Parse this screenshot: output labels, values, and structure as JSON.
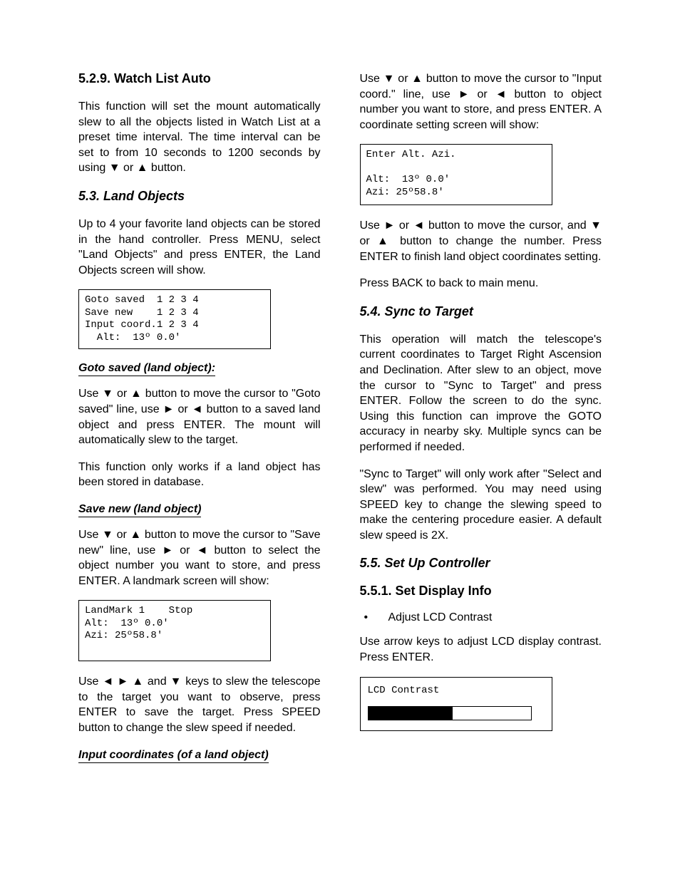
{
  "left": {
    "sec529": {
      "heading": "5.2.9. Watch List Auto",
      "para": "This function will set the mount automatically slew to all the objects listed in Watch List at a preset time interval. The time interval can be set to from 10 seconds to 1200 seconds by using ▼ or ▲ button."
    },
    "sec53": {
      "heading": "5.3. Land Objects",
      "intro": "Up to 4 your favorite land objects can be stored in the hand controller. Press MENU, select  \"Land Objects\" and press ENTER, the Land Objects screen will show.",
      "box1": "Goto saved  1 2 3 4\nSave new    1 2 3 4\nInput coord.1 2 3 4\n  Alt:  13º 0.0'"
    },
    "goto": {
      "heading": "Goto saved (land object):",
      "p1": "Use ▼ or ▲ button to move the cursor to \"Goto saved\" line, use ► or ◄ button to a saved land object and press ENTER. The mount will automatically slew to the target.",
      "p2": "This function only works if a land object has been stored in database."
    },
    "savenew": {
      "heading": "Save new (land object)",
      "p1": "Use ▼ or ▲ button to move the cursor to \"Save new\" line, use ► or ◄ button to select the object number you want to store, and press ENTER. A landmark screen will show:",
      "box": "LandMark 1    Stop\nAlt:  13º 0.0'\nAzi: 25º58.8'",
      "p2": "Use ◄ ► ▲ and ▼ keys to slew the telescope to the target you want to observe, press ENTER to save the target. Press SPEED button to change the slew speed if needed."
    },
    "inputcoord": {
      "heading": "Input coordinates (of a land object)"
    }
  },
  "right": {
    "inputcoord": {
      "p1": "Use ▼ or ▲ button to move the cursor to \"Input coord.\" line, use ► or ◄ button to object number you want to store, and press ENTER. A coordinate setting screen will show:",
      "box": "Enter Alt. Azi.\n\nAlt:  13º 0.0'\nAzi: 25º58.8'",
      "p2": "Use ► or ◄ button to move the cursor, and ▼ or ▲ button to change the number. Press ENTER to finish land object coordinates setting.",
      "p3": "Press BACK to back to main menu."
    },
    "sec54": {
      "heading": "5.4. Sync to Target",
      "p1": "This operation will match the telescope's current coordinates to Target Right Ascension and Declination. After slew to an object, move the cursor to \"Sync to Target\" and press ENTER. Follow the screen to do the sync. Using this function can improve the GOTO accuracy in nearby sky. Multiple syncs can be performed if needed.",
      "p2": "\"Sync to Target\" will only work after \"Select and slew\" was performed. You may need using SPEED key to change the slewing speed to make the centering procedure easier. A default slew speed is 2X."
    },
    "sec55": {
      "heading": "5.5. Set Up Controller"
    },
    "sec551": {
      "heading": "5.5.1. Set Display Info",
      "bullet": "Adjust LCD Contrast",
      "p1": "Use arrow keys to adjust LCD display contrast. Press ENTER.",
      "boxlabel": "LCD Contrast",
      "fill_pct": 52
    }
  },
  "colors": {
    "text": "#000000",
    "bg": "#ffffff",
    "border": "#000000"
  }
}
